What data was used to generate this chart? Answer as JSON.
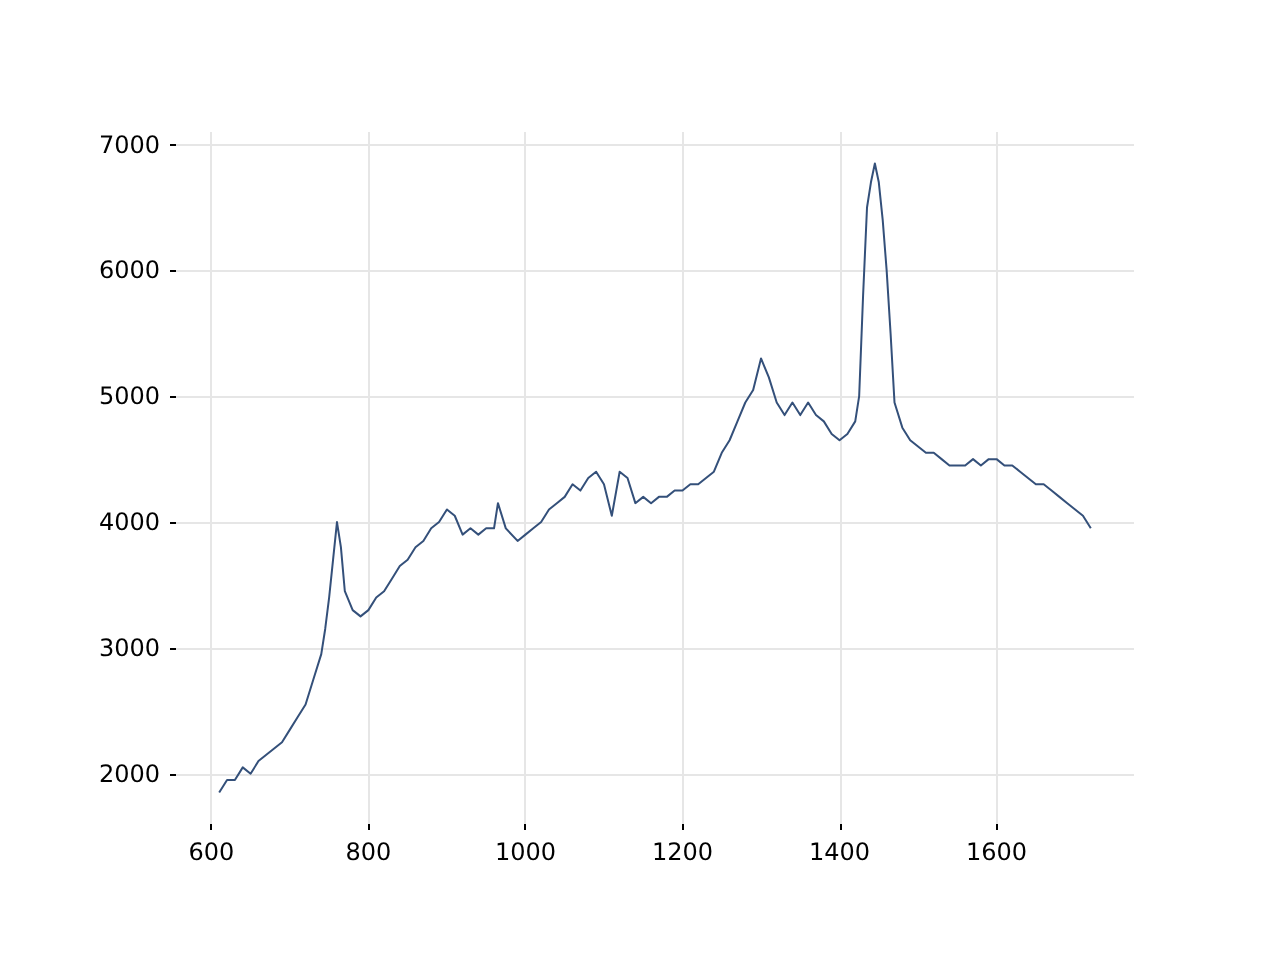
{
  "chart_data": {
    "type": "line",
    "x": [
      610,
      620,
      630,
      640,
      650,
      660,
      670,
      680,
      690,
      700,
      710,
      720,
      730,
      740,
      745,
      750,
      755,
      760,
      765,
      770,
      780,
      790,
      800,
      810,
      820,
      830,
      840,
      850,
      860,
      870,
      880,
      890,
      900,
      910,
      920,
      930,
      940,
      950,
      960,
      965,
      975,
      990,
      1000,
      1010,
      1020,
      1030,
      1040,
      1050,
      1060,
      1070,
      1080,
      1090,
      1100,
      1110,
      1120,
      1130,
      1140,
      1150,
      1160,
      1170,
      1180,
      1190,
      1200,
      1210,
      1220,
      1230,
      1240,
      1250,
      1260,
      1270,
      1280,
      1290,
      1300,
      1310,
      1320,
      1330,
      1340,
      1350,
      1360,
      1370,
      1380,
      1390,
      1400,
      1410,
      1420,
      1425,
      1430,
      1435,
      1440,
      1445,
      1450,
      1455,
      1460,
      1465,
      1470,
      1480,
      1490,
      1500,
      1510,
      1520,
      1530,
      1540,
      1550,
      1560,
      1570,
      1580,
      1590,
      1600,
      1610,
      1620,
      1630,
      1640,
      1650,
      1660,
      1670,
      1680,
      1690,
      1700,
      1710,
      1720
    ],
    "series": [
      {
        "color": "#34507a",
        "values": [
          1850,
          1950,
          1950,
          2050,
          2000,
          2100,
          2150,
          2200,
          2250,
          2350,
          2450,
          2550,
          2750,
          2950,
          3150,
          3400,
          3700,
          4000,
          3800,
          3450,
          3300,
          3250,
          3300,
          3400,
          3450,
          3550,
          3650,
          3700,
          3800,
          3850,
          3950,
          4000,
          4100,
          4050,
          3900,
          3950,
          3900,
          3950,
          3950,
          4150,
          3950,
          3850,
          3900,
          3950,
          4000,
          4100,
          4150,
          4200,
          4300,
          4250,
          4350,
          4400,
          4300,
          4050,
          4400,
          4350,
          4150,
          4200,
          4150,
          4200,
          4200,
          4250,
          4250,
          4300,
          4300,
          4350,
          4400,
          4550,
          4650,
          4800,
          4950,
          5050,
          5300,
          5150,
          4950,
          4850,
          4950,
          4850,
          4950,
          4850,
          4800,
          4700,
          4650,
          4700,
          4800,
          5000,
          5800,
          6500,
          6700,
          6850,
          6700,
          6400,
          6000,
          5500,
          4950,
          4750,
          4650,
          4600,
          4550,
          4550,
          4500,
          4450,
          4450,
          4450,
          4500,
          4450,
          4500,
          4500,
          4450,
          4450,
          4400,
          4350,
          4300,
          4300,
          4250,
          4200,
          4150,
          4100,
          4050,
          3950
        ]
      }
    ],
    "xlim": [
      555,
      1775
    ],
    "xticks": [
      600,
      800,
      1000,
      1200,
      1400,
      1600
    ],
    "ylim": [
      1600,
      7100
    ],
    "yticks": [
      2000,
      3000,
      4000,
      5000,
      6000,
      7000
    ],
    "grid": true,
    "marker": "none",
    "line_style": "solid"
  }
}
